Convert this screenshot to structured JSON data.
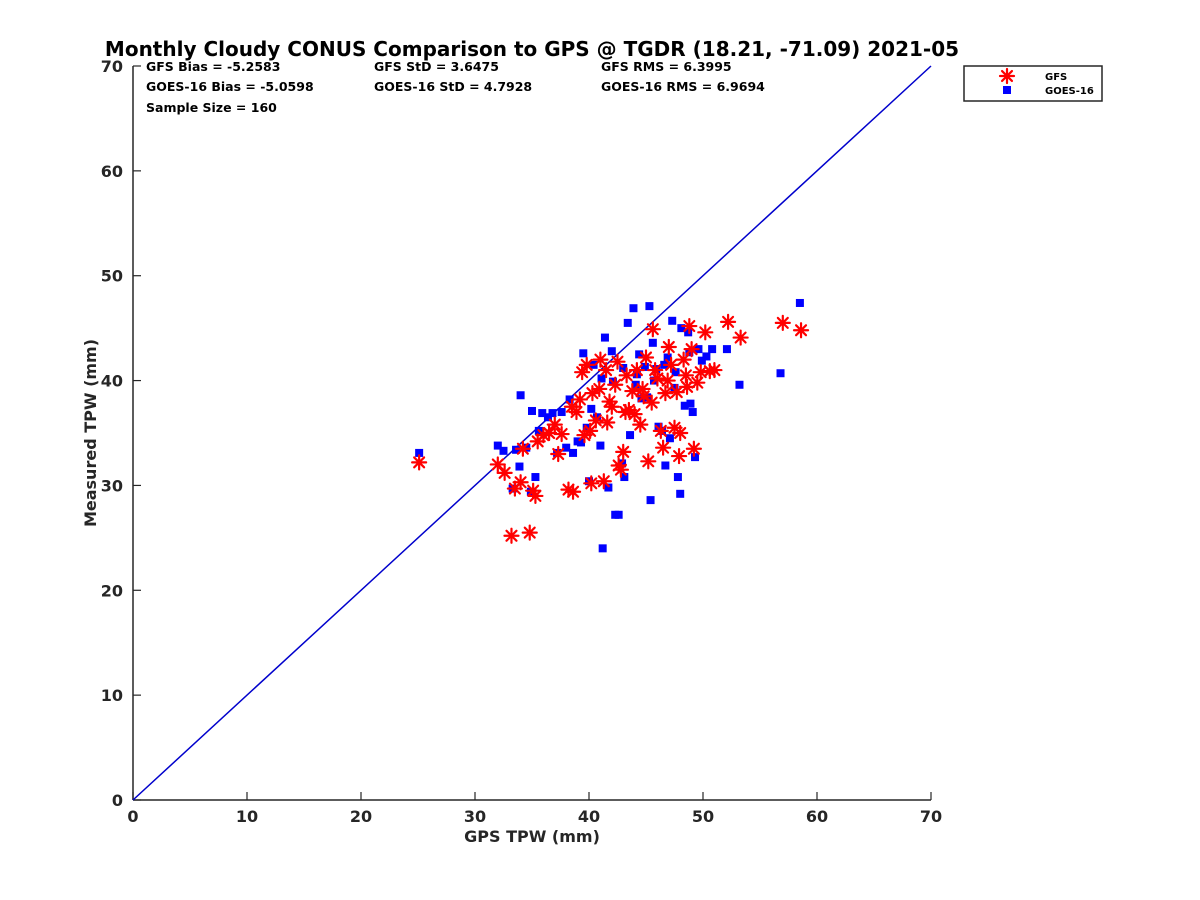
{
  "chart_data": {
    "type": "scatter",
    "title": "Monthly Cloudy CONUS Comparison to GPS @ TGDR (18.21, -71.09) 2021-05",
    "xlabel": "GPS TPW (mm)",
    "ylabel": "Measured TPW (mm)",
    "xlim": [
      0,
      70
    ],
    "ylim": [
      0,
      70
    ],
    "xticks": [
      "0",
      "10",
      "20",
      "30",
      "40",
      "50",
      "60",
      "70"
    ],
    "yticks": [
      "0",
      "10",
      "20",
      "30",
      "40",
      "50",
      "60",
      "70"
    ],
    "grid": false,
    "legend_position": "top-right",
    "stats": [
      [
        "GFS Bias = -5.2583",
        "GFS StD = 3.6475",
        "GFS RMS = 6.3995"
      ],
      [
        "GOES-16 Bias = -5.0598",
        "GOES-16 StD = 4.7928",
        "GOES-16 RMS = 6.9694"
      ],
      [
        "Sample Size = 160"
      ]
    ],
    "reference_line": {
      "x": [
        0,
        70
      ],
      "y": [
        0,
        70
      ],
      "color": "#0000cc"
    },
    "series": [
      {
        "name": "GFS",
        "marker": "asterisk",
        "color": "#ff0000",
        "points": [
          [
            25.1,
            32.2
          ],
          [
            32.0,
            32.0
          ],
          [
            32.6,
            31.2
          ],
          [
            33.2,
            25.2
          ],
          [
            33.5,
            29.7
          ],
          [
            34.0,
            30.3
          ],
          [
            34.2,
            33.5
          ],
          [
            34.8,
            25.5
          ],
          [
            35.1,
            29.5
          ],
          [
            35.3,
            29.0
          ],
          [
            35.5,
            34.2
          ],
          [
            36.0,
            34.8
          ],
          [
            36.5,
            35.0
          ],
          [
            37.0,
            35.8
          ],
          [
            37.3,
            33.0
          ],
          [
            37.6,
            34.9
          ],
          [
            38.2,
            29.6
          ],
          [
            38.6,
            29.4
          ],
          [
            38.5,
            37.5
          ],
          [
            38.9,
            37.0
          ],
          [
            39.2,
            38.2
          ],
          [
            39.4,
            40.8
          ],
          [
            39.8,
            41.5
          ],
          [
            39.6,
            34.8
          ],
          [
            40.1,
            35.2
          ],
          [
            40.3,
            38.8
          ],
          [
            40.6,
            36.2
          ],
          [
            40.9,
            39.2
          ],
          [
            40.2,
            30.2
          ],
          [
            41.3,
            30.4
          ],
          [
            41.0,
            42.0
          ],
          [
            41.6,
            36.0
          ],
          [
            41.8,
            38.0
          ],
          [
            42.0,
            37.5
          ],
          [
            42.3,
            39.6
          ],
          [
            42.6,
            31.9
          ],
          [
            42.8,
            31.5
          ],
          [
            43.0,
            33.2
          ],
          [
            43.2,
            37.0
          ],
          [
            43.5,
            37.2
          ],
          [
            43.8,
            39.0
          ],
          [
            44.0,
            36.8
          ],
          [
            44.2,
            41.0
          ],
          [
            44.5,
            35.8
          ],
          [
            44.8,
            38.5
          ],
          [
            45.0,
            42.2
          ],
          [
            45.2,
            32.3
          ],
          [
            45.5,
            37.9
          ],
          [
            45.6,
            44.9
          ],
          [
            45.8,
            41.0
          ],
          [
            46.0,
            40.2
          ],
          [
            46.3,
            35.2
          ],
          [
            46.5,
            33.6
          ],
          [
            46.7,
            38.8
          ],
          [
            47.0,
            43.2
          ],
          [
            47.2,
            41.5
          ],
          [
            47.5,
            35.5
          ],
          [
            47.7,
            38.9
          ],
          [
            47.9,
            32.8
          ],
          [
            48.0,
            35.0
          ],
          [
            48.3,
            42.0
          ],
          [
            48.5,
            40.5
          ],
          [
            48.8,
            45.2
          ],
          [
            49.0,
            43.0
          ],
          [
            49.2,
            33.5
          ],
          [
            49.5,
            39.8
          ],
          [
            49.8,
            40.8
          ],
          [
            50.2,
            44.6
          ],
          [
            50.6,
            40.9
          ],
          [
            51.0,
            41.0
          ],
          [
            52.2,
            45.6
          ],
          [
            53.3,
            44.1
          ],
          [
            57.0,
            45.5
          ],
          [
            58.6,
            44.8
          ],
          [
            41.5,
            41.0
          ],
          [
            42.5,
            41.8
          ],
          [
            43.3,
            40.5
          ],
          [
            44.7,
            39.2
          ],
          [
            46.9,
            40.0
          ],
          [
            48.6,
            39.4
          ]
        ]
      },
      {
        "name": "GOES-16",
        "marker": "square",
        "color": "#0000ff",
        "points": [
          [
            25.1,
            33.1
          ],
          [
            32.0,
            33.8
          ],
          [
            32.5,
            33.3
          ],
          [
            33.3,
            29.7
          ],
          [
            33.6,
            33.4
          ],
          [
            33.9,
            31.8
          ],
          [
            34.0,
            38.6
          ],
          [
            34.5,
            33.6
          ],
          [
            34.9,
            29.4
          ],
          [
            35.0,
            37.1
          ],
          [
            35.3,
            30.8
          ],
          [
            35.6,
            35.2
          ],
          [
            35.9,
            36.9
          ],
          [
            36.4,
            36.5
          ],
          [
            36.8,
            36.9
          ],
          [
            37.2,
            33.1
          ],
          [
            37.6,
            37.0
          ],
          [
            38.0,
            33.6
          ],
          [
            38.3,
            38.2
          ],
          [
            38.6,
            33.1
          ],
          [
            39.0,
            34.2
          ],
          [
            39.3,
            34.1
          ],
          [
            39.5,
            42.6
          ],
          [
            39.8,
            35.5
          ],
          [
            40.0,
            30.4
          ],
          [
            40.2,
            37.3
          ],
          [
            40.4,
            41.5
          ],
          [
            40.7,
            36.5
          ],
          [
            41.0,
            33.8
          ],
          [
            41.2,
            24.0
          ],
          [
            41.4,
            44.1
          ],
          [
            41.7,
            29.8
          ],
          [
            42.0,
            42.8
          ],
          [
            42.3,
            27.2
          ],
          [
            42.6,
            27.2
          ],
          [
            42.9,
            32.1
          ],
          [
            43.1,
            30.8
          ],
          [
            43.4,
            45.5
          ],
          [
            43.6,
            34.8
          ],
          [
            43.9,
            46.9
          ],
          [
            44.1,
            39.6
          ],
          [
            44.4,
            42.5
          ],
          [
            44.6,
            38.3
          ],
          [
            44.9,
            41.3
          ],
          [
            45.1,
            38.4
          ],
          [
            45.3,
            47.1
          ],
          [
            45.4,
            28.6
          ],
          [
            45.6,
            43.6
          ],
          [
            45.9,
            41.1
          ],
          [
            46.1,
            35.6
          ],
          [
            46.4,
            35.2
          ],
          [
            46.7,
            31.9
          ],
          [
            46.9,
            42.2
          ],
          [
            47.1,
            34.5
          ],
          [
            47.3,
            45.7
          ],
          [
            47.5,
            39.3
          ],
          [
            47.8,
            30.8
          ],
          [
            48.0,
            29.2
          ],
          [
            48.1,
            45.0
          ],
          [
            48.4,
            37.6
          ],
          [
            48.7,
            44.6
          ],
          [
            48.9,
            37.8
          ],
          [
            49.1,
            37.0
          ],
          [
            49.3,
            32.7
          ],
          [
            49.6,
            43.0
          ],
          [
            49.9,
            41.9
          ],
          [
            50.3,
            42.3
          ],
          [
            50.8,
            43.0
          ],
          [
            52.1,
            43.0
          ],
          [
            53.2,
            39.6
          ],
          [
            56.8,
            40.7
          ],
          [
            58.5,
            47.4
          ],
          [
            41.1,
            40.2
          ],
          [
            42.1,
            39.9
          ],
          [
            43.0,
            41.2
          ],
          [
            44.2,
            40.6
          ],
          [
            45.7,
            40.0
          ],
          [
            46.6,
            41.5
          ],
          [
            47.6,
            40.8
          ],
          [
            48.8,
            42.7
          ]
        ]
      }
    ]
  }
}
